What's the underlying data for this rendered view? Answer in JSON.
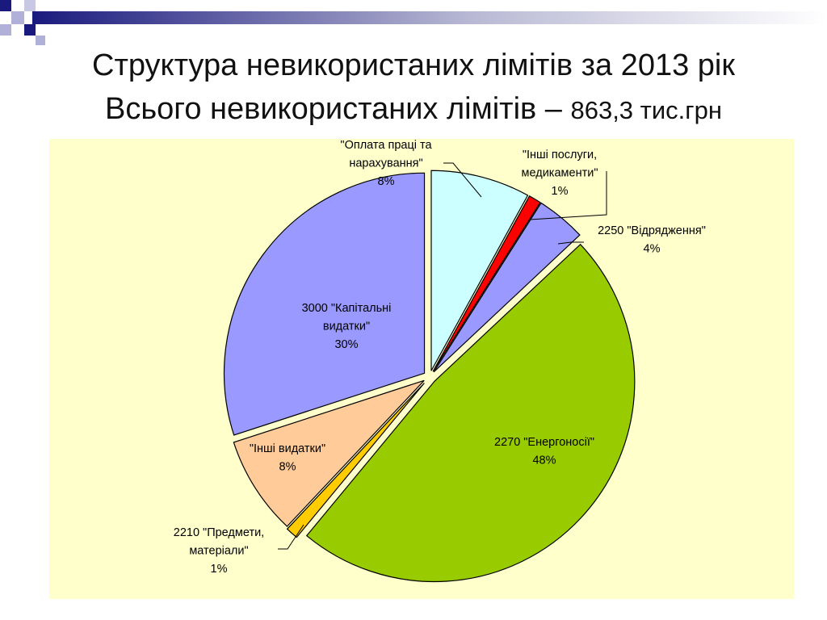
{
  "title_line1": "Структура невикористаних лімітів за 2013 рік",
  "title_line2_text": "Всього невикористаних лімітів",
  "title_line2_dash": "–",
  "title_line2_value": "863,3 тис.грн",
  "chart_data": {
    "type": "pie",
    "unit": "%",
    "slices": [
      {
        "label": [
          "\"Оплата праці та",
          "нарахування\""
        ],
        "value": 8,
        "display": "8%",
        "color": "#ccffff"
      },
      {
        "label": [
          "\"Інші послуги,",
          "медикаменти\""
        ],
        "value": 1,
        "display": "1%",
        "color": "#ff0000"
      },
      {
        "label": [
          "2250 \"Відрядження\""
        ],
        "value": 4,
        "display": "4%",
        "color": "#9999ff"
      },
      {
        "label": [
          "2270 \"Енергоносії\""
        ],
        "value": 48,
        "display": "48%",
        "color": "#99cc00"
      },
      {
        "label": [
          "2210 \"Предмети,",
          "матеріали\""
        ],
        "value": 1,
        "display": "1%",
        "color": "#ffcc00"
      },
      {
        "label": [
          "\"Інші видатки\""
        ],
        "value": 8,
        "display": "8%",
        "color": "#ffcc99"
      },
      {
        "label": [
          "3000 \"Капітальні",
          "видатки\""
        ],
        "value": 30,
        "display": "30%",
        "color": "#9999ff"
      }
    ]
  }
}
